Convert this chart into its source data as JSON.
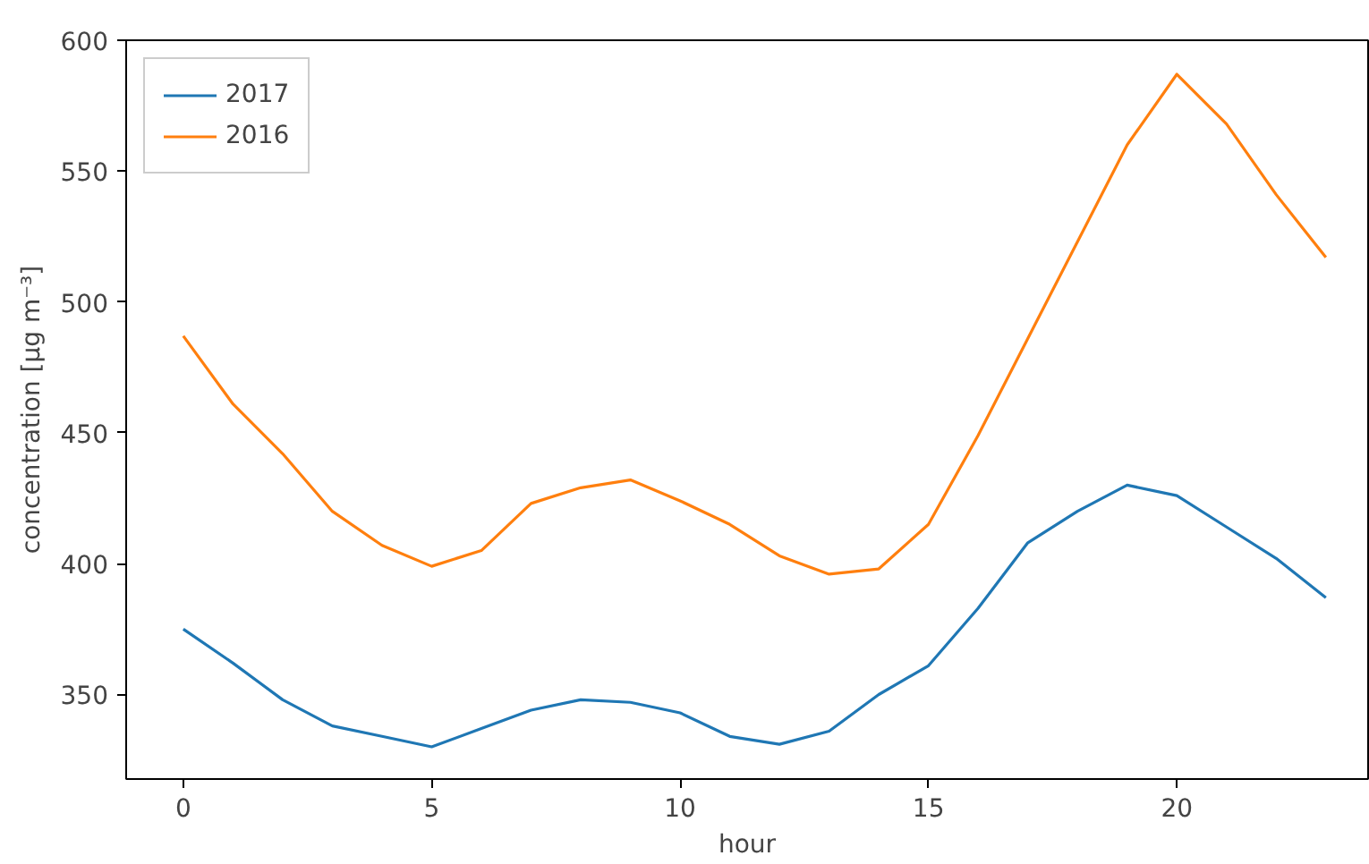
{
  "chart_data": {
    "type": "line",
    "xlabel": "hour",
    "ylabel": "concentration [μg m⁻³]",
    "x": [
      0,
      1,
      2,
      3,
      4,
      5,
      6,
      7,
      8,
      9,
      10,
      11,
      12,
      13,
      14,
      15,
      16,
      17,
      18,
      19,
      20,
      21,
      22,
      23
    ],
    "series": [
      {
        "name": "2017",
        "color": "#1f77b4",
        "values": [
          375,
          362,
          348,
          338,
          334,
          330,
          337,
          344,
          348,
          347,
          343,
          334,
          331,
          336,
          350,
          361,
          383,
          408,
          420,
          430,
          426,
          414,
          402,
          387
        ]
      },
      {
        "name": "2016",
        "color": "#ff7f0e",
        "values": [
          487,
          461,
          442,
          420,
          407,
          399,
          405,
          423,
          429,
          432,
          424,
          415,
          403,
          396,
          398,
          415,
          449,
          486,
          523,
          560,
          587,
          568,
          541,
          517
        ]
      }
    ],
    "xlim": [
      -1.15,
      23.85
    ],
    "ylim": [
      317.7,
      600
    ],
    "xticks": [
      0,
      5,
      10,
      15,
      20
    ],
    "yticks": [
      350,
      400,
      450,
      500,
      550,
      600
    ],
    "grid": false,
    "legend": "top left",
    "marker": "none",
    "line_style": "solid"
  }
}
